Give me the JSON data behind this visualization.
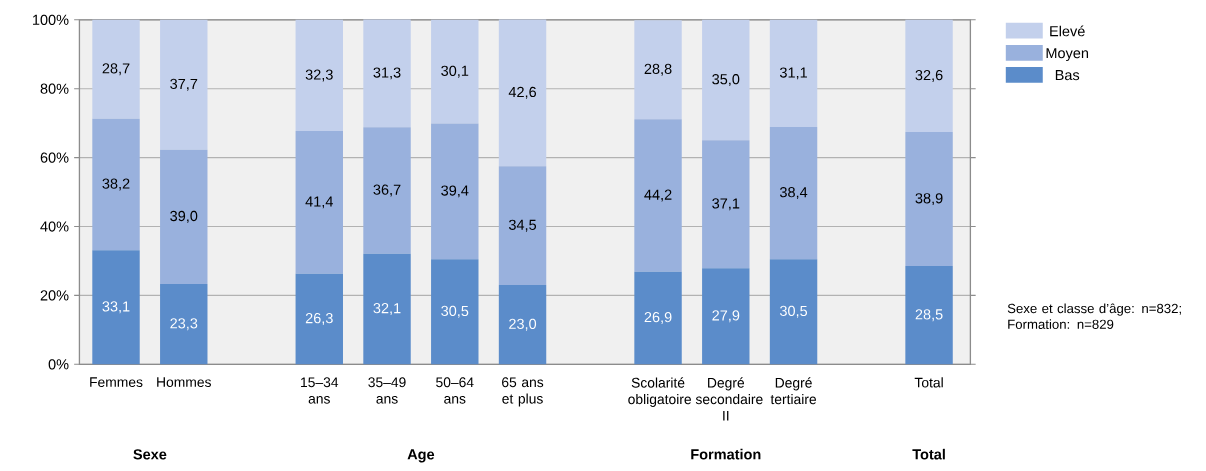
{
  "chart_data": {
    "type": "bar",
    "stacked": true,
    "grid": "y",
    "legend": "top right",
    "categories": [
      "Femmes",
      "Hommes",
      null,
      "15–34 ans",
      "35–49 ans",
      "50–64 ans",
      "65 ans et plus",
      null,
      "Scolarité obligatoire",
      "Degré secondaire II",
      "Degré tertiaire",
      null,
      "Total"
    ],
    "series": [
      {
        "name": "Bas",
        "color": "#5b8cca",
        "values": [
          33.1,
          23.3,
          null,
          26.3,
          32.1,
          30.5,
          23.0,
          null,
          26.9,
          27.9,
          30.5,
          null,
          28.5
        ],
        "value_labels": [
          "33,1",
          "23,3",
          null,
          "26,3",
          "32,1",
          "30,5",
          "23,0",
          null,
          "26,9",
          "27,9",
          "30,5",
          null,
          "28,5"
        ]
      },
      {
        "name": "Moyen",
        "color": "#99b1dd",
        "values": [
          38.2,
          39.0,
          null,
          41.4,
          36.7,
          39.4,
          34.5,
          null,
          44.2,
          37.1,
          38.4,
          null,
          38.9
        ],
        "value_labels": [
          "38,2",
          "39,0",
          null,
          "41,4",
          "36,7",
          "39,4",
          "34,5",
          null,
          "44,2",
          "37,1",
          "38,4",
          null,
          "38,9"
        ]
      },
      {
        "name": "Elevé",
        "color": "#c3d0ec",
        "values": [
          28.7,
          37.7,
          null,
          32.3,
          31.3,
          30.1,
          42.6,
          null,
          28.8,
          35.0,
          31.1,
          null,
          32.6
        ],
        "value_labels": [
          "28,7",
          "37,7",
          null,
          "32,3",
          "31,3",
          "30,1",
          "42,6",
          null,
          "28,8",
          "35,0",
          "31,1",
          null,
          "32,6"
        ]
      }
    ],
    "ylim": [
      0,
      100
    ],
    "yticks": [
      {
        "value": 0,
        "label": "0%"
      },
      {
        "value": 20,
        "label": "20%"
      },
      {
        "value": 40,
        "label": "40%"
      },
      {
        "value": 60,
        "label": "60%"
      },
      {
        "value": 80,
        "label": "80%"
      },
      {
        "value": 100,
        "label": "100%"
      }
    ],
    "annotations": [
      "Sexe",
      "Age",
      "Formation",
      "Total",
      "Sexe et classe d’âge: n=832; Formation: n=829"
    ]
  }
}
